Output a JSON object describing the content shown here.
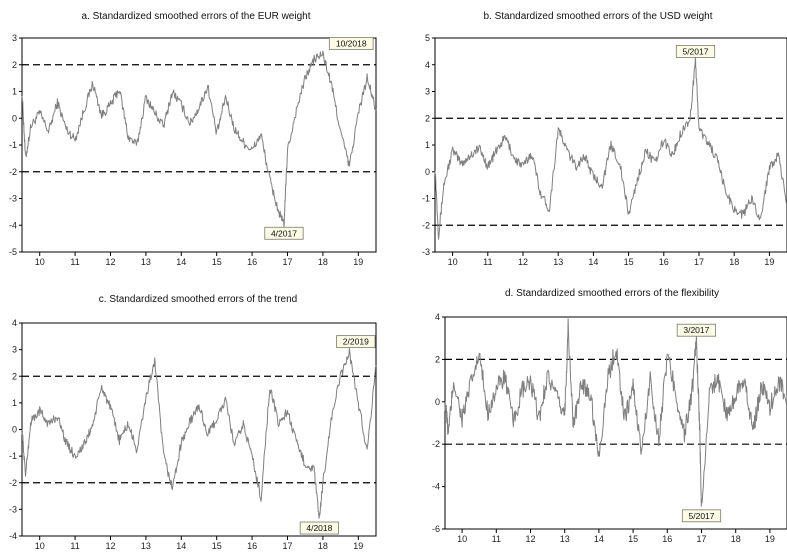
{
  "chart_data": [
    {
      "type": "line",
      "title": "a. Standardized smoothed errors of the EUR weight",
      "xlim": [
        2009.5,
        2019.5
      ],
      "ylim": [
        -5,
        3
      ],
      "yticks": [
        -5,
        -4,
        -3,
        -2,
        -1,
        0,
        1,
        2,
        3
      ],
      "xticks": [
        10,
        11,
        12,
        13,
        14,
        15,
        16,
        17,
        18,
        19
      ],
      "reference_lines": [
        2,
        -2
      ],
      "series": [
        {
          "x": [
            2009.5,
            2009.6,
            2009.75,
            2010.0,
            2010.25,
            2010.5,
            2010.75,
            2011.0,
            2011.25,
            2011.5,
            2011.75,
            2012.0,
            2012.25,
            2012.5,
            2012.75,
            2013.0,
            2013.25,
            2013.5,
            2013.75,
            2014.0,
            2014.25,
            2014.5,
            2014.75,
            2015.0,
            2015.25,
            2015.5,
            2015.75,
            2016.0,
            2016.25,
            2016.5,
            2016.75,
            2016.9,
            2017.0,
            2017.25,
            2017.5,
            2017.75,
            2018.0,
            2018.25,
            2018.5,
            2018.75,
            2019.0,
            2019.25,
            2019.5
          ],
          "y": [
            1.0,
            -1.5,
            -0.3,
            0.2,
            -0.5,
            0.6,
            -0.4,
            -0.8,
            0.3,
            1.3,
            0.1,
            0.5,
            1.1,
            -0.7,
            -1.0,
            0.8,
            0.2,
            -0.3,
            1.0,
            0.5,
            -0.2,
            0.4,
            1.2,
            -0.6,
            0.8,
            -0.4,
            -0.9,
            -1.2,
            -0.6,
            -2.3,
            -3.5,
            -4.0,
            -1.2,
            0.3,
            1.5,
            2.2,
            2.4,
            1.2,
            -0.5,
            -1.8,
            0.2,
            1.5,
            0.3
          ]
        }
      ],
      "annotations": [
        {
          "label": "10/2018",
          "x": 2018.8,
          "y": 2.5
        },
        {
          "label": "4/2017",
          "x": 2016.9,
          "y": -4.0
        }
      ]
    },
    {
      "type": "line",
      "title": "b. Standardized smoothed errors of the USD weight",
      "xlim": [
        2009.5,
        2019.5
      ],
      "ylim": [
        -3,
        5
      ],
      "yticks": [
        -3,
        -2,
        -1,
        0,
        1,
        2,
        3,
        4,
        5
      ],
      "xticks": [
        10,
        11,
        12,
        13,
        14,
        15,
        16,
        17,
        18,
        19
      ],
      "reference_lines": [
        2,
        -2
      ],
      "series": [
        {
          "x": [
            2009.5,
            2009.6,
            2009.75,
            2010.0,
            2010.25,
            2010.5,
            2010.75,
            2011.0,
            2011.25,
            2011.5,
            2011.75,
            2012.0,
            2012.25,
            2012.5,
            2012.75,
            2013.0,
            2013.25,
            2013.5,
            2013.75,
            2014.0,
            2014.25,
            2014.5,
            2014.75,
            2015.0,
            2015.25,
            2015.5,
            2015.75,
            2016.0,
            2016.25,
            2016.5,
            2016.75,
            2016.9,
            2017.0,
            2017.25,
            2017.5,
            2017.75,
            2018.0,
            2018.25,
            2018.5,
            2018.75,
            2019.0,
            2019.25,
            2019.5
          ],
          "y": [
            0.2,
            -2.4,
            -0.5,
            0.8,
            0.3,
            0.6,
            0.9,
            0.2,
            0.8,
            1.3,
            0.5,
            0.2,
            0.7,
            -0.8,
            -1.4,
            1.6,
            0.8,
            0.2,
            0.6,
            -0.2,
            -0.5,
            1.0,
            0.3,
            -1.6,
            -0.3,
            0.8,
            0.3,
            1.2,
            0.6,
            1.5,
            2.0,
            4.2,
            1.6,
            1.1,
            0.5,
            -0.7,
            -1.4,
            -1.6,
            -1.0,
            -1.8,
            0.2,
            0.6,
            -1.2
          ]
        }
      ],
      "annotations": [
        {
          "label": "5/2017",
          "x": 2016.9,
          "y": 4.2
        }
      ]
    },
    {
      "type": "line",
      "title": "c. Standardized smoothed errors of the trend",
      "xlim": [
        2009.5,
        2019.5
      ],
      "ylim": [
        -4,
        4
      ],
      "yticks": [
        -4,
        -3,
        -2,
        -1,
        0,
        1,
        2,
        3,
        4
      ],
      "xticks": [
        10,
        11,
        12,
        13,
        14,
        15,
        16,
        17,
        18,
        19
      ],
      "reference_lines": [
        2,
        -2
      ],
      "series": [
        {
          "x": [
            2009.5,
            2009.6,
            2009.75,
            2010.0,
            2010.25,
            2010.5,
            2010.75,
            2011.0,
            2011.25,
            2011.5,
            2011.75,
            2012.0,
            2012.25,
            2012.5,
            2012.75,
            2013.0,
            2013.25,
            2013.5,
            2013.75,
            2014.0,
            2014.25,
            2014.5,
            2014.75,
            2015.0,
            2015.25,
            2015.5,
            2015.75,
            2016.0,
            2016.25,
            2016.5,
            2016.75,
            2017.0,
            2017.25,
            2017.5,
            2017.75,
            2017.9,
            2018.0,
            2018.25,
            2018.5,
            2018.75,
            2019.0,
            2019.25,
            2019.5
          ],
          "y": [
            0.0,
            -1.7,
            0.3,
            0.7,
            0.2,
            0.5,
            -0.5,
            -1.0,
            -0.6,
            0.2,
            1.6,
            0.8,
            -0.4,
            0.2,
            -0.8,
            1.2,
            2.6,
            -1.0,
            -2.2,
            -0.5,
            0.3,
            0.9,
            -0.2,
            0.4,
            1.1,
            -0.6,
            0.2,
            -1.0,
            -2.6,
            1.6,
            0.2,
            0.7,
            -0.5,
            -1.3,
            -1.5,
            -3.4,
            -2.0,
            0.5,
            2.0,
            2.9,
            1.0,
            -0.8,
            2.4
          ]
        }
      ],
      "annotations": [
        {
          "label": "2/2019",
          "x": 2019.1,
          "y": 3.0
        },
        {
          "label": "4/2018",
          "x": 2017.9,
          "y": -3.4
        }
      ]
    },
    {
      "type": "line",
      "title": "d. Standardized smoothed errors of the flexibility",
      "xlim": [
        2009.5,
        2019.5
      ],
      "ylim": [
        -6,
        4
      ],
      "yticks": [
        -6,
        -4,
        -2,
        0,
        2,
        4
      ],
      "xticks": [
        10,
        11,
        12,
        13,
        14,
        15,
        16,
        17,
        18,
        19
      ],
      "reference_lines": [
        2,
        -2
      ],
      "series": [
        {
          "x": [
            2009.5,
            2009.6,
            2009.75,
            2010.0,
            2010.25,
            2010.5,
            2010.75,
            2011.0,
            2011.25,
            2011.5,
            2011.75,
            2012.0,
            2012.25,
            2012.5,
            2012.75,
            2013.0,
            2013.1,
            2013.25,
            2013.5,
            2013.75,
            2014.0,
            2014.25,
            2014.5,
            2014.75,
            2015.0,
            2015.25,
            2015.5,
            2015.75,
            2016.0,
            2016.25,
            2016.5,
            2016.75,
            2016.85,
            2016.95,
            2017.0,
            2017.25,
            2017.5,
            2017.75,
            2018.0,
            2018.25,
            2018.5,
            2018.75,
            2019.0,
            2019.25,
            2019.5
          ],
          "y": [
            0.0,
            -1.5,
            1.0,
            -0.8,
            0.8,
            2.2,
            -0.5,
            0.6,
            1.2,
            -1.0,
            0.5,
            0.9,
            -0.8,
            1.3,
            0.2,
            -0.6,
            3.5,
            -1.2,
            0.9,
            0.4,
            -2.6,
            1.0,
            2.6,
            -0.8,
            0.7,
            -2.4,
            1.1,
            -1.8,
            2.2,
            0.4,
            -1.6,
            0.8,
            3.0,
            -1.5,
            -5.0,
            0.7,
            1.0,
            -0.7,
            0.4,
            1.2,
            -1.5,
            0.8,
            -0.2,
            0.9,
            0.3
          ]
        }
      ],
      "annotations": [
        {
          "label": "3/2017",
          "x": 2016.85,
          "y": 3.0
        },
        {
          "label": "5/2017",
          "x": 2017.0,
          "y": -5.0
        }
      ]
    }
  ]
}
